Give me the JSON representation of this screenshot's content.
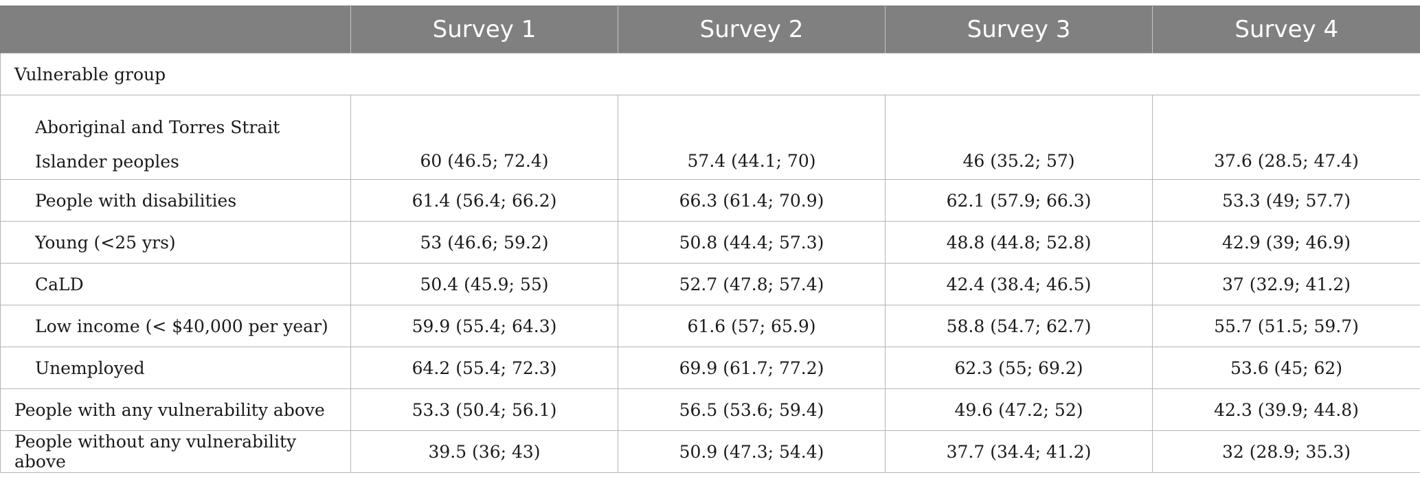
{
  "table": {
    "headers": [
      "",
      "Survey 1",
      "Survey 2",
      "Survey 3",
      "Survey 4"
    ],
    "group_label": "Vulnerable group",
    "rows": [
      {
        "label": "Aboriginal and Torres Strait Islander peoples",
        "values": [
          "60 (46.5; 72.4)",
          "57.4 (44.1; 70)",
          "46 (35.2; 57)",
          "37.6 (28.5; 47.4)"
        ]
      },
      {
        "label": "People with disabilities",
        "values": [
          "61.4 (56.4; 66.2)",
          "66.3 (61.4; 70.9)",
          "62.1 (57.9; 66.3)",
          "53.3 (49; 57.7)"
        ]
      },
      {
        "label": "Young (<25 yrs)",
        "values": [
          "53 (46.6; 59.2)",
          "50.8 (44.4; 57.3)",
          "48.8 (44.8; 52.8)",
          "42.9 (39; 46.9)"
        ]
      },
      {
        "label": "CaLD",
        "values": [
          "50.4 (45.9; 55)",
          "52.7 (47.8; 57.4)",
          "42.4 (38.4; 46.5)",
          "37 (32.9; 41.2)"
        ]
      },
      {
        "label": "Low income (< $40,000 per year)",
        "values": [
          "59.9 (55.4; 64.3)",
          "61.6 (57; 65.9)",
          "58.8 (54.7; 62.7)",
          "55.7 (51.5; 59.7)"
        ]
      },
      {
        "label": "Unemployed",
        "values": [
          "64.2 (55.4; 72.3)",
          "69.9 (61.7; 77.2)",
          "62.3 (55; 69.2)",
          "53.6 (45; 62)"
        ]
      }
    ],
    "summary_rows": [
      {
        "label": "People with any vulnerability above",
        "values": [
          "53.3 (50.4; 56.1)",
          "56.5 (53.6; 59.4)",
          "49.6 (47.2; 52)",
          "42.3 (39.9; 44.8)"
        ]
      },
      {
        "label": "People without any vulnerability above",
        "values": [
          "39.5 (36; 43)",
          "50.9 (47.3; 54.4)",
          "37.7 (34.4; 41.2)",
          "32 (28.9; 35.3)"
        ]
      }
    ]
  }
}
